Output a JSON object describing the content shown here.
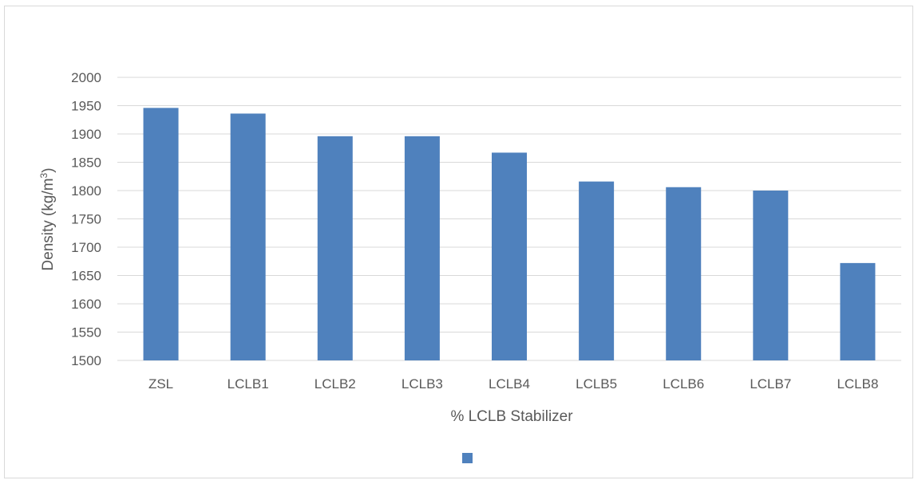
{
  "chart_data": {
    "type": "bar",
    "title": "",
    "xlabel": "% LCLB Stabilizer",
    "ylabel": "Density (kg/m",
    "ylabel_superscript": "3",
    "ylabel_suffix": ")",
    "categories": [
      "ZSL",
      "LCLB1",
      "LCLB2",
      "LCLB3",
      "LCLB4",
      "LCLB5",
      "LCLB6",
      "LCLB7",
      "LCLB8"
    ],
    "series": [
      {
        "values": [
          1946,
          1936,
          1896,
          1896,
          1867,
          1816,
          1806,
          1800,
          1672
        ],
        "color": "#4f81bd"
      }
    ],
    "ylim": [
      1500,
      2000
    ],
    "yticks": [
      1500,
      1550,
      1600,
      1650,
      1700,
      1750,
      1800,
      1850,
      1900,
      1950,
      2000
    ],
    "grid": true,
    "gridline_color": "#d9d9d9",
    "legend": {
      "placement": "bottom",
      "entries": [
        {
          "name": "",
          "color": "#4f81bd"
        }
      ]
    }
  }
}
